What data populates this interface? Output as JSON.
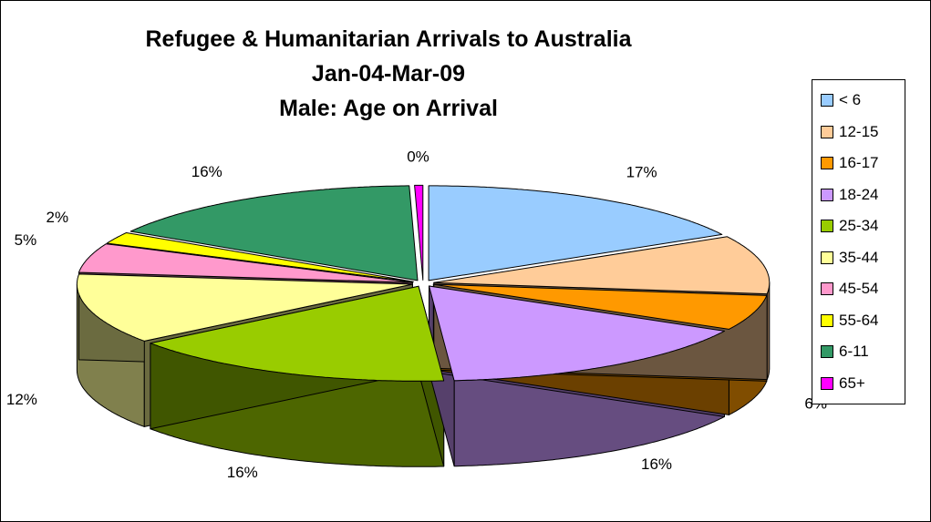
{
  "chart_data": {
    "type": "pie",
    "style": "3d-exploded",
    "title_lines": [
      "Refugee & Humanitarian Arrivals to Australia",
      "Jan-04-Mar-09",
      "Male: Age on Arrival"
    ],
    "legend_position": "right",
    "start_angle_deg": 0,
    "slices": [
      {
        "label": "< 6",
        "value": 17,
        "value_label": "17%",
        "color": "#99CCFF"
      },
      {
        "label": "12-15",
        "value": 10,
        "value_label": "10%",
        "color": "#FFCC99"
      },
      {
        "label": "16-17",
        "value": 6,
        "value_label": "6%",
        "color": "#FF9900"
      },
      {
        "label": "18-24",
        "value": 16,
        "value_label": "16%",
        "color": "#CC99FF"
      },
      {
        "label": "25-34",
        "value": 16,
        "value_label": "16%",
        "color": "#99CC00"
      },
      {
        "label": "35-44",
        "value": 12,
        "value_label": "12%",
        "color": "#FFFF99"
      },
      {
        "label": "45-54",
        "value": 5,
        "value_label": "5%",
        "color": "#FF99CC"
      },
      {
        "label": "55-64",
        "value": 2,
        "value_label": "2%",
        "color": "#FFFF00"
      },
      {
        "label": "6-11",
        "value": 16,
        "value_label": "16%",
        "color": "#339966"
      },
      {
        "label": "65+",
        "value": 0.4,
        "value_label": "0%",
        "color": "#FF00FF"
      }
    ]
  }
}
